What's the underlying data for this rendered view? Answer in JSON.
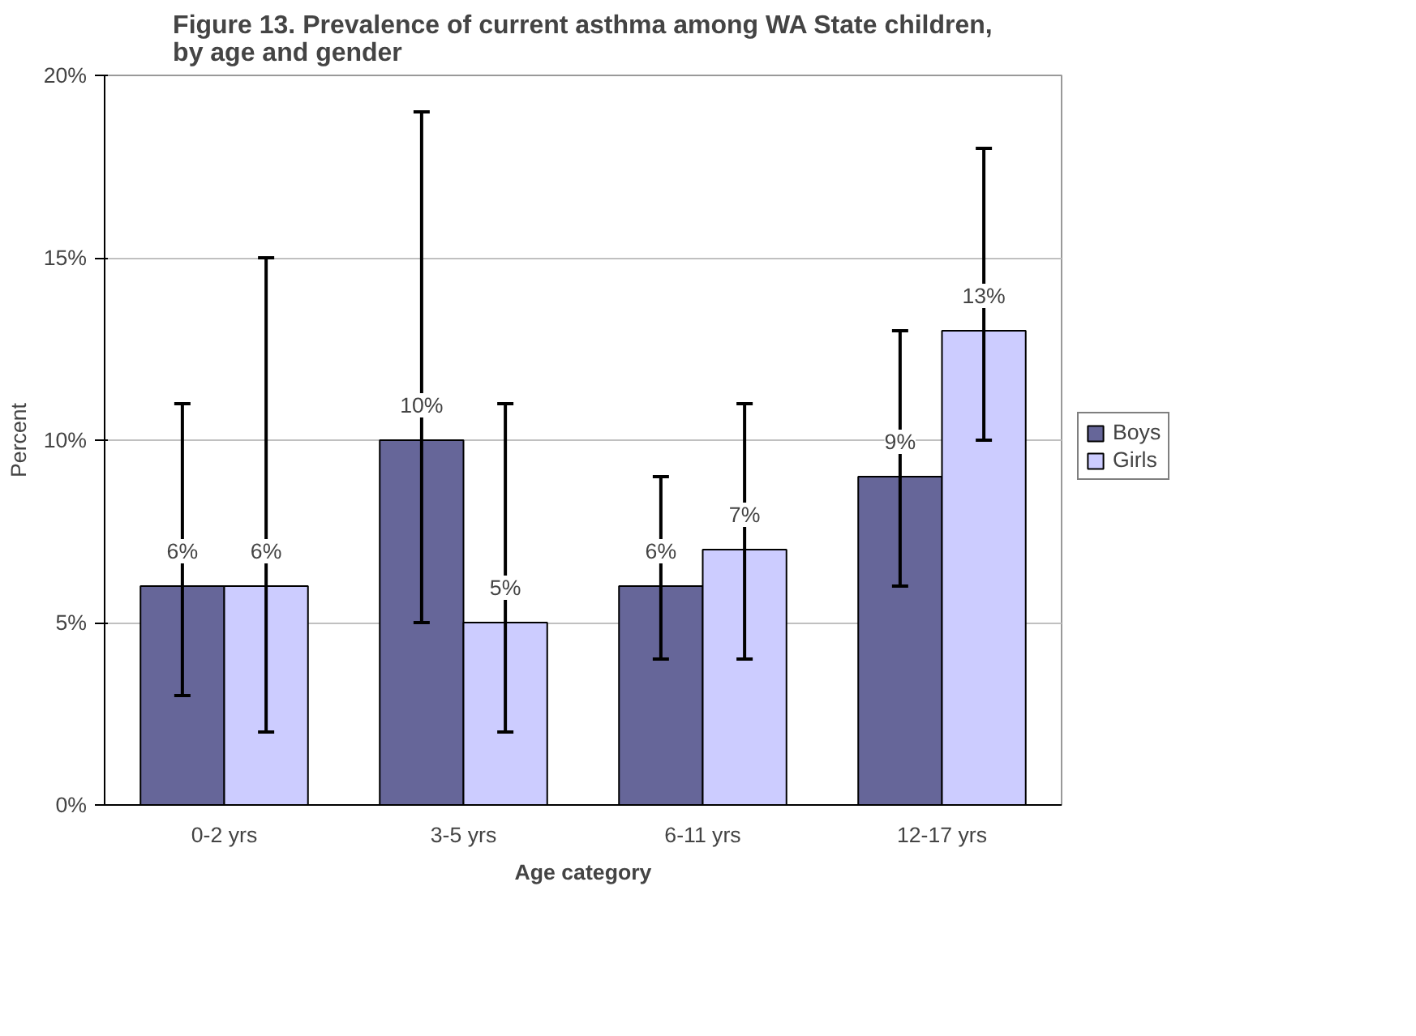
{
  "chart_data": {
    "type": "bar",
    "title": "Figure 13. Prevalence of current asthma among WA State children, by age and gender",
    "xlabel": "Age category",
    "ylabel": "Percent",
    "categories": [
      "0-2 yrs",
      "3-5 yrs",
      "6-11 yrs",
      "12-17 yrs"
    ],
    "series": [
      {
        "name": "Boys",
        "color": "#666699",
        "values": [
          6,
          10,
          6,
          9
        ],
        "errors": [
          [
            3,
            11
          ],
          [
            5,
            19
          ],
          [
            4,
            9
          ],
          [
            6,
            13
          ]
        ],
        "value_labels": [
          "6%",
          "10%",
          "6%",
          "9%"
        ]
      },
      {
        "name": "Girls",
        "color": "#ccccff",
        "values": [
          6,
          5,
          7,
          13
        ],
        "errors": [
          [
            2,
            15
          ],
          [
            2,
            11
          ],
          [
            4,
            11
          ],
          [
            10,
            18
          ]
        ],
        "value_labels": [
          "6%",
          "5%",
          "7%",
          "13%"
        ]
      }
    ],
    "ylim": [
      0,
      20
    ],
    "yticks": [
      {
        "value": 0,
        "label": "0%"
      },
      {
        "value": 5,
        "label": "5%"
      },
      {
        "value": 10,
        "label": "10%"
      },
      {
        "value": 15,
        "label": "15%"
      },
      {
        "value": 20,
        "label": "20%"
      }
    ],
    "grid": "y",
    "legend": "right"
  }
}
